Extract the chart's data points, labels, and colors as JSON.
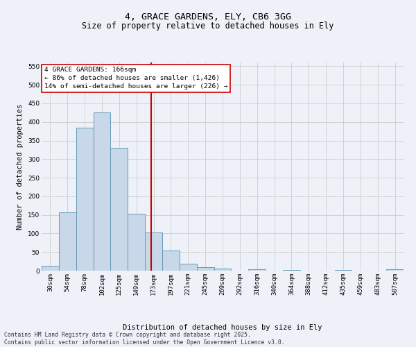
{
  "title": "4, GRACE GARDENS, ELY, CB6 3GG",
  "subtitle": "Size of property relative to detached houses in Ely",
  "xlabel": "Distribution of detached houses by size in Ely",
  "ylabel": "Number of detached properties",
  "categories": [
    "30sqm",
    "54sqm",
    "78sqm",
    "102sqm",
    "125sqm",
    "149sqm",
    "173sqm",
    "197sqm",
    "221sqm",
    "245sqm",
    "269sqm",
    "292sqm",
    "316sqm",
    "340sqm",
    "364sqm",
    "388sqm",
    "412sqm",
    "435sqm",
    "459sqm",
    "483sqm",
    "507sqm"
  ],
  "bar_values": [
    13,
    157,
    385,
    425,
    330,
    153,
    103,
    55,
    18,
    10,
    5,
    0,
    3,
    0,
    2,
    0,
    0,
    1,
    0,
    0,
    3
  ],
  "bar_color": "#c8d8e8",
  "bar_edge_color": "#6699bb",
  "vline_x": 5.85,
  "vline_color": "#cc0000",
  "annotation_text": "4 GRACE GARDENS: 166sqm\n← 86% of detached houses are smaller (1,426)\n14% of semi-detached houses are larger (226) →",
  "annotation_box_color": "#ffffff",
  "annotation_box_edge": "#cc0000",
  "ylim": [
    0,
    560
  ],
  "yticks": [
    0,
    50,
    100,
    150,
    200,
    250,
    300,
    350,
    400,
    450,
    500,
    550
  ],
  "grid_color": "#cccccc",
  "background_color": "#eef2f8",
  "plot_bg_color": "#eef2f8",
  "footer": "Contains HM Land Registry data © Crown copyright and database right 2025.\nContains public sector information licensed under the Open Government Licence v3.0.",
  "title_fontsize": 9.5,
  "subtitle_fontsize": 8.5,
  "axis_label_fontsize": 7.5,
  "tick_fontsize": 6.5,
  "annotation_fontsize": 6.8,
  "footer_fontsize": 5.8
}
